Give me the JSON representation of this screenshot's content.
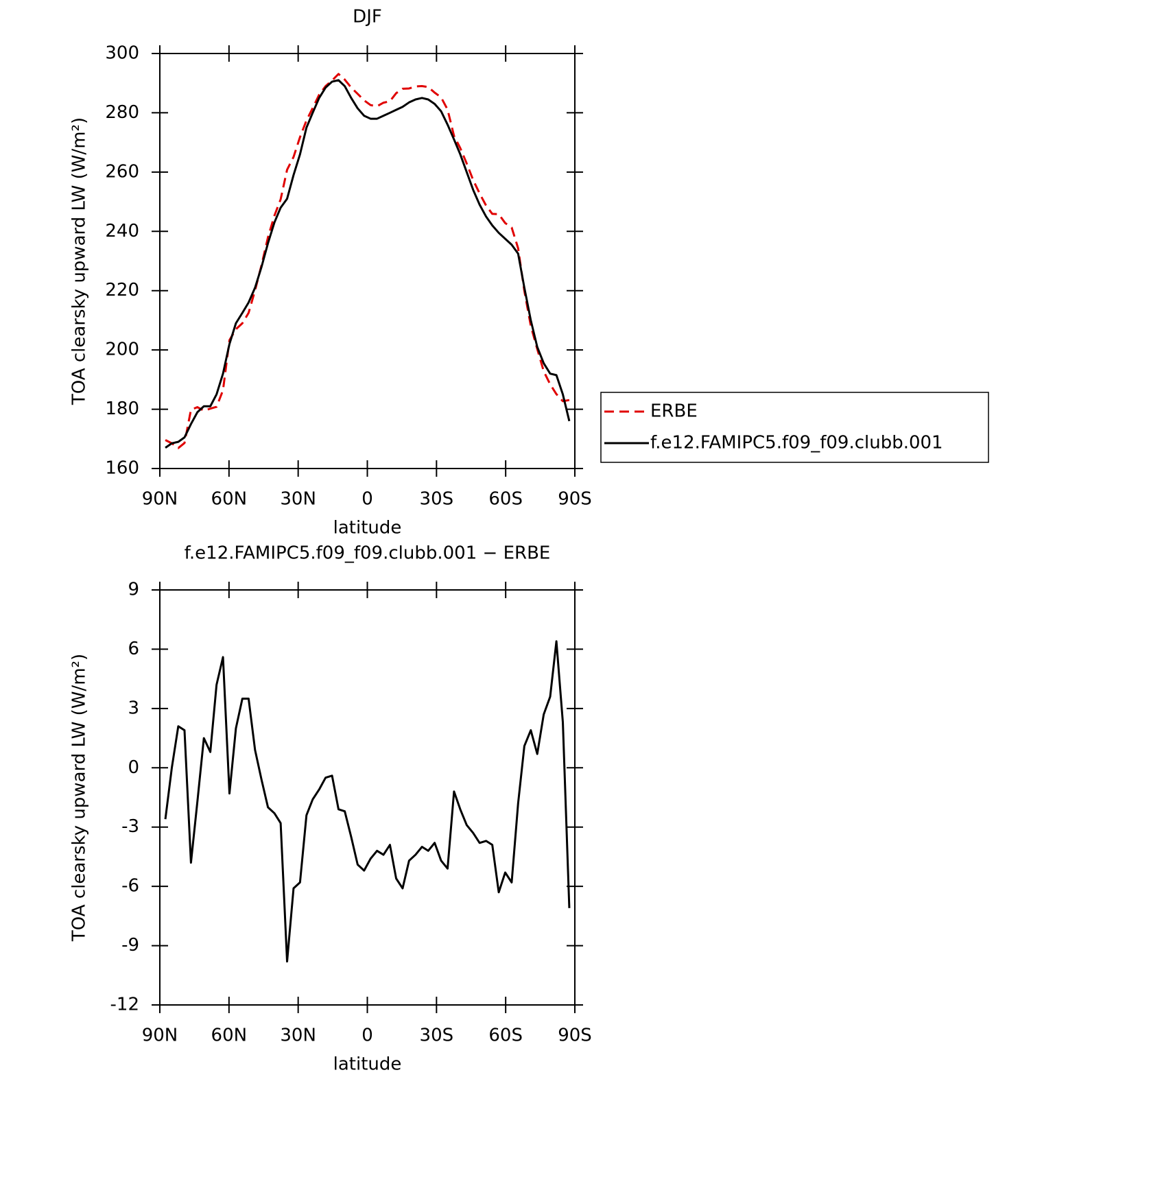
{
  "chart_data": [
    {
      "type": "line",
      "title": "DJF",
      "xlabel": "latitude",
      "ylabel": "TOA clearsky upward LW (W/m²)",
      "x": [
        87.6,
        84.8,
        82.0,
        79.3,
        76.5,
        73.7,
        70.9,
        68.1,
        65.4,
        62.6,
        59.8,
        57.0,
        54.2,
        51.5,
        48.7,
        45.9,
        43.1,
        40.3,
        37.6,
        34.8,
        32.0,
        29.2,
        26.4,
        23.7,
        20.9,
        18.1,
        15.3,
        12.5,
        9.8,
        7.0,
        4.2,
        1.4,
        -1.4,
        -4.2,
        -7.0,
        -9.8,
        -12.5,
        -15.3,
        -18.1,
        -20.9,
        -23.7,
        -26.4,
        -29.2,
        -32.0,
        -34.8,
        -37.6,
        -40.3,
        -43.1,
        -45.9,
        -48.7,
        -51.5,
        -54.2,
        -57.0,
        -59.8,
        -62.6,
        -65.4,
        -68.1,
        -70.9,
        -73.7,
        -76.5,
        -79.3,
        -82.0,
        -84.8,
        -87.6
      ],
      "series": [
        {
          "name": "ERBE",
          "color": "#e00000",
          "dash": "dashed",
          "values": [
            169.6,
            168.5,
            166.9,
            168.6,
            179.8,
            180.7,
            179.5,
            180.2,
            180.8,
            186.4,
            203.3,
            207,
            209,
            212.5,
            220.1,
            228.6,
            238,
            245.3,
            250.8,
            260.8,
            265.1,
            271.8,
            277.4,
            281.6,
            286.1,
            289,
            290.9,
            293.1,
            291.2,
            288.5,
            286.4,
            284.2,
            282.6,
            282.2,
            283.4,
            283.9,
            286.6,
            288.1,
            288.2,
            288.9,
            289,
            288.7,
            286.8,
            285.2,
            281.1,
            272.2,
            268.1,
            262.9,
            257.3,
            252.8,
            248.7,
            245.9,
            245.8,
            242.8,
            241.3,
            234.3,
            219.9,
            208.1,
            200.3,
            192.8,
            188.4,
            185.1,
            182.7,
            183.1
          ]
        },
        {
          "name": "f.e12.FAMIPC5.f09_f09.clubb.001",
          "color": "#000000",
          "dash": "solid",
          "values": [
            167,
            168.5,
            169,
            170.5,
            175,
            179,
            181,
            181,
            185,
            192,
            202,
            209,
            212.5,
            216,
            221,
            228,
            236,
            243,
            248,
            251,
            259,
            266,
            275,
            280,
            285,
            288.5,
            290.5,
            291,
            289,
            285,
            281.5,
            279,
            278,
            278,
            279,
            280,
            281,
            282,
            283.5,
            284.5,
            285,
            284.5,
            283,
            280.5,
            276,
            271,
            266,
            260,
            254,
            249,
            245,
            242,
            239.5,
            237.5,
            235.5,
            232.5,
            221,
            210,
            201,
            195.5,
            192,
            191.5,
            185,
            176
          ]
        }
      ],
      "xlim": [
        90,
        -90
      ],
      "xticks": [
        {
          "value": 90,
          "label": "90N"
        },
        {
          "value": 60,
          "label": "60N"
        },
        {
          "value": 30,
          "label": "30N"
        },
        0,
        {
          "value": -30,
          "label": "30S"
        },
        {
          "value": -60,
          "label": "60S"
        },
        {
          "value": -90,
          "label": "90S"
        }
      ],
      "ylim": [
        160,
        300
      ],
      "yticks": [
        160,
        180,
        200,
        220,
        240,
        260,
        280,
        300
      ],
      "legend": "right"
    },
    {
      "type": "line",
      "title": "f.e12.FAMIPC5.f09_f09.clubb.001 − ERBE",
      "xlabel": "latitude",
      "ylabel": "TOA clearsky upward LW (W/m²)",
      "x": [
        87.6,
        84.8,
        82.0,
        79.3,
        76.5,
        73.7,
        70.9,
        68.1,
        65.4,
        62.6,
        59.8,
        57.0,
        54.2,
        51.5,
        48.7,
        45.9,
        43.1,
        40.3,
        37.6,
        34.8,
        32.0,
        29.2,
        26.4,
        23.7,
        20.9,
        18.1,
        15.3,
        12.5,
        9.8,
        7.0,
        4.2,
        1.4,
        -1.4,
        -4.2,
        -7.0,
        -9.8,
        -12.5,
        -15.3,
        -18.1,
        -20.9,
        -23.7,
        -26.4,
        -29.2,
        -32.0,
        -34.8,
        -37.6,
        -40.3,
        -43.1,
        -45.9,
        -48.7,
        -51.5,
        -54.2,
        -57.0,
        -59.8,
        -62.6,
        -65.4,
        -68.1,
        -70.9,
        -73.7,
        -76.5,
        -79.3,
        -82.0,
        -84.8,
        -87.6
      ],
      "series": [
        {
          "color": "#000000",
          "dash": "solid",
          "values": [
            -2.6,
            0.0,
            2.1,
            1.9,
            -4.8,
            -1.7,
            1.5,
            0.8,
            4.2,
            5.6,
            -1.3,
            2.0,
            3.5,
            3.5,
            0.9,
            -0.6,
            -2.0,
            -2.3,
            -2.8,
            -9.8,
            -6.1,
            -5.8,
            -2.4,
            -1.6,
            -1.1,
            -0.5,
            -0.4,
            -2.1,
            -2.2,
            -3.5,
            -4.9,
            -5.2,
            -4.6,
            -4.2,
            -4.4,
            -3.9,
            -5.6,
            -6.1,
            -4.7,
            -4.4,
            -4.0,
            -4.2,
            -3.8,
            -4.7,
            -5.1,
            -1.2,
            -2.1,
            -2.9,
            -3.3,
            -3.8,
            -3.7,
            -3.9,
            -6.3,
            -5.3,
            -5.8,
            -1.8,
            1.1,
            1.9,
            0.7,
            2.7,
            3.6,
            6.4,
            2.3,
            -7.1
          ]
        }
      ],
      "xlim": [
        90,
        -90
      ],
      "xticks": [
        {
          "value": 90,
          "label": "90N"
        },
        {
          "value": 60,
          "label": "60N"
        },
        {
          "value": 30,
          "label": "30N"
        },
        0,
        {
          "value": -30,
          "label": "30S"
        },
        {
          "value": -60,
          "label": "60S"
        },
        {
          "value": -90,
          "label": "90S"
        }
      ],
      "ylim": [
        -12,
        9
      ],
      "yticks": [
        -12,
        -9,
        -6,
        -3,
        0,
        3,
        6,
        9
      ]
    }
  ]
}
